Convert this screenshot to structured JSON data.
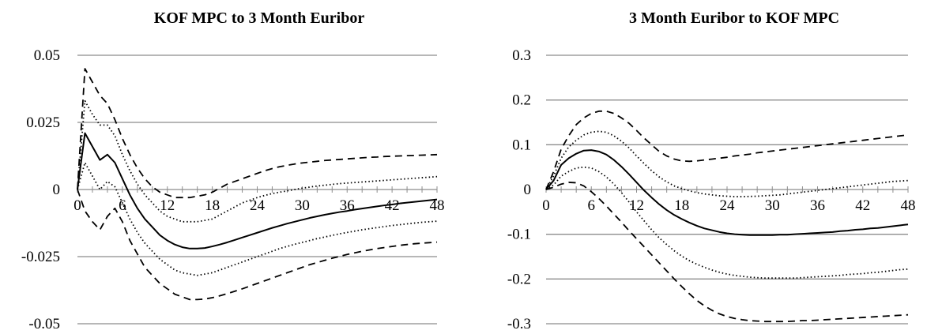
{
  "chart_data": [
    {
      "type": "line",
      "title": "KOF MPC to 3 Month Euribor",
      "xlabel": "",
      "ylabel": "",
      "xlim": [
        0,
        48
      ],
      "ylim": [
        -0.05,
        0.05
      ],
      "xticks": [
        0,
        6,
        12,
        18,
        24,
        30,
        36,
        42,
        48
      ],
      "xtick_labels": [
        "0",
        "6",
        "12",
        "18",
        "24",
        "30",
        "36",
        "42",
        "48"
      ],
      "yticks": [
        -0.05,
        -0.025,
        0,
        0.025,
        0.05
      ],
      "ytick_labels": [
        "-0.05",
        "-0.025",
        "0",
        "0.025",
        "0.05"
      ],
      "grid": true,
      "legend": "none",
      "x": [
        0,
        1,
        2,
        3,
        4,
        5,
        6,
        7,
        8,
        9,
        10,
        11,
        12,
        13,
        14,
        15,
        16,
        17,
        18,
        19,
        20,
        21,
        22,
        23,
        24,
        25,
        26,
        27,
        28,
        29,
        30,
        31,
        32,
        33,
        34,
        35,
        36,
        37,
        38,
        39,
        40,
        41,
        42,
        43,
        44,
        45,
        46,
        47,
        48
      ],
      "series": [
        {
          "style": "dashed",
          "values": [
            0,
            0.045,
            0.04,
            0.035,
            0.032,
            0.026,
            0.019,
            0.013,
            0.008,
            0.004,
            0.001,
            -0.001,
            -0.002,
            -0.003,
            -0.003,
            -0.003,
            -0.0025,
            -0.002,
            -0.001,
            0.0005,
            0.002,
            0.003,
            0.004,
            0.005,
            0.006,
            0.007,
            0.0078,
            0.0085,
            0.009,
            0.0095,
            0.0099,
            0.0102,
            0.0105,
            0.0108,
            0.011,
            0.0112,
            0.0114,
            0.0116,
            0.0118,
            0.012,
            0.0121,
            0.0123,
            0.0124,
            0.0125,
            0.0126,
            0.0127,
            0.0128,
            0.0129,
            0.013
          ]
        },
        {
          "style": "dotted",
          "values": [
            0,
            0.033,
            0.028,
            0.024,
            0.024,
            0.02,
            0.013,
            0.007,
            0.002,
            -0.002,
            -0.005,
            -0.008,
            -0.01,
            -0.011,
            -0.012,
            -0.012,
            -0.012,
            -0.0115,
            -0.011,
            -0.0095,
            -0.008,
            -0.0065,
            -0.005,
            -0.004,
            -0.003,
            -0.0022,
            -0.0015,
            -0.001,
            -0.0005,
            0,
            0.0005,
            0.0009,
            0.0013,
            0.0016,
            0.0019,
            0.0022,
            0.0024,
            0.0026,
            0.0028,
            0.003,
            0.0032,
            0.0034,
            0.0036,
            0.0038,
            0.004,
            0.0042,
            0.0044,
            0.0046,
            0.0048
          ]
        },
        {
          "style": "solid",
          "values": [
            0,
            0.021,
            0.016,
            0.011,
            0.013,
            0.01,
            0.004,
            -0.002,
            -0.007,
            -0.011,
            -0.014,
            -0.017,
            -0.019,
            -0.0205,
            -0.0215,
            -0.022,
            -0.022,
            -0.0218,
            -0.0212,
            -0.0205,
            -0.0197,
            -0.0188,
            -0.0179,
            -0.017,
            -0.0161,
            -0.0152,
            -0.0143,
            -0.0135,
            -0.0127,
            -0.012,
            -0.0113,
            -0.0106,
            -0.01,
            -0.0094,
            -0.0089,
            -0.0084,
            -0.008,
            -0.0075,
            -0.0071,
            -0.0067,
            -0.0063,
            -0.0059,
            -0.0056,
            -0.0052,
            -0.0049,
            -0.0046,
            -0.0043,
            -0.004,
            -0.0037
          ]
        },
        {
          "style": "dotted",
          "values": [
            0,
            0.01,
            0.005,
            0.0,
            0.003,
            0.001,
            -0.005,
            -0.011,
            -0.016,
            -0.02,
            -0.023,
            -0.026,
            -0.028,
            -0.03,
            -0.031,
            -0.0315,
            -0.032,
            -0.0315,
            -0.031,
            -0.03,
            -0.029,
            -0.028,
            -0.027,
            -0.026,
            -0.025,
            -0.024,
            -0.023,
            -0.022,
            -0.0212,
            -0.0204,
            -0.0197,
            -0.019,
            -0.0183,
            -0.0177,
            -0.0171,
            -0.0165,
            -0.016,
            -0.0155,
            -0.015,
            -0.0146,
            -0.0142,
            -0.0138,
            -0.0134,
            -0.0131,
            -0.0128,
            -0.0125,
            -0.0122,
            -0.012,
            -0.0118
          ]
        },
        {
          "style": "dashed",
          "values": [
            0,
            -0.008,
            -0.012,
            -0.015,
            -0.01,
            -0.007,
            -0.012,
            -0.019,
            -0.024,
            -0.029,
            -0.032,
            -0.035,
            -0.037,
            -0.039,
            -0.04,
            -0.041,
            -0.041,
            -0.0408,
            -0.0403,
            -0.0396,
            -0.0388,
            -0.0379,
            -0.037,
            -0.036,
            -0.035,
            -0.034,
            -0.033,
            -0.032,
            -0.031,
            -0.03,
            -0.029,
            -0.028,
            -0.0272,
            -0.0264,
            -0.0256,
            -0.0249,
            -0.0242,
            -0.0236,
            -0.023,
            -0.0225,
            -0.022,
            -0.0216,
            -0.0212,
            -0.0208,
            -0.0205,
            -0.0202,
            -0.02,
            -0.0198,
            -0.0196
          ]
        }
      ]
    },
    {
      "type": "line",
      "title": "3 Month Euribor to KOF MPC",
      "xlabel": "",
      "ylabel": "",
      "xlim": [
        0,
        48
      ],
      "ylim": [
        -0.3,
        0.3
      ],
      "xticks": [
        0,
        6,
        12,
        18,
        24,
        30,
        36,
        42,
        48
      ],
      "xtick_labels": [
        "0",
        "6",
        "12",
        "18",
        "24",
        "30",
        "36",
        "42",
        "48"
      ],
      "yticks": [
        -0.3,
        -0.2,
        -0.1,
        0,
        0.1,
        0.2,
        0.3
      ],
      "ytick_labels": [
        "-0.3",
        "-0.2",
        "-0.1",
        "0",
        "0.1",
        "0.2",
        "0.3"
      ],
      "grid": true,
      "legend": "none",
      "x": [
        0,
        1,
        2,
        3,
        4,
        5,
        6,
        7,
        8,
        9,
        10,
        11,
        12,
        13,
        14,
        15,
        16,
        17,
        18,
        19,
        20,
        21,
        22,
        23,
        24,
        25,
        26,
        27,
        28,
        29,
        30,
        31,
        32,
        33,
        34,
        35,
        36,
        37,
        38,
        39,
        40,
        41,
        42,
        43,
        44,
        45,
        46,
        47,
        48
      ],
      "series": [
        {
          "style": "dashed",
          "values": [
            0,
            0.04,
            0.09,
            0.12,
            0.145,
            0.16,
            0.17,
            0.175,
            0.175,
            0.17,
            0.16,
            0.148,
            0.132,
            0.115,
            0.1,
            0.085,
            0.075,
            0.068,
            0.064,
            0.063,
            0.064,
            0.066,
            0.068,
            0.07,
            0.072,
            0.075,
            0.077,
            0.079,
            0.082,
            0.084,
            0.086,
            0.088,
            0.09,
            0.092,
            0.094,
            0.096,
            0.098,
            0.1,
            0.102,
            0.104,
            0.106,
            0.108,
            0.11,
            0.112,
            0.114,
            0.116,
            0.118,
            0.12,
            0.122
          ]
        },
        {
          "style": "dotted",
          "values": [
            0,
            0.03,
            0.07,
            0.095,
            0.11,
            0.122,
            0.128,
            0.13,
            0.128,
            0.12,
            0.108,
            0.093,
            0.075,
            0.058,
            0.042,
            0.028,
            0.017,
            0.008,
            0.002,
            -0.003,
            -0.007,
            -0.01,
            -0.012,
            -0.014,
            -0.015,
            -0.016,
            -0.016,
            -0.0155,
            -0.015,
            -0.014,
            -0.013,
            -0.012,
            -0.01,
            -0.008,
            -0.006,
            -0.004,
            -0.002,
            0,
            0.002,
            0.004,
            0.006,
            0.008,
            0.01,
            0.012,
            0.014,
            0.016,
            0.018,
            0.019,
            0.02
          ]
        },
        {
          "style": "solid",
          "values": [
            0,
            0.02,
            0.055,
            0.07,
            0.08,
            0.087,
            0.088,
            0.085,
            0.078,
            0.066,
            0.051,
            0.034,
            0.016,
            -0.002,
            -0.018,
            -0.033,
            -0.046,
            -0.057,
            -0.066,
            -0.074,
            -0.081,
            -0.087,
            -0.091,
            -0.095,
            -0.098,
            -0.1,
            -0.101,
            -0.102,
            -0.102,
            -0.102,
            -0.102,
            -0.101,
            -0.101,
            -0.1,
            -0.099,
            -0.098,
            -0.097,
            -0.096,
            -0.095,
            -0.093,
            -0.092,
            -0.09,
            -0.089,
            -0.087,
            -0.086,
            -0.084,
            -0.082,
            -0.08,
            -0.078
          ]
        },
        {
          "style": "dotted",
          "values": [
            0,
            0.01,
            0.03,
            0.04,
            0.048,
            0.05,
            0.048,
            0.04,
            0.028,
            0.012,
            -0.007,
            -0.028,
            -0.05,
            -0.07,
            -0.09,
            -0.108,
            -0.123,
            -0.137,
            -0.149,
            -0.159,
            -0.167,
            -0.174,
            -0.18,
            -0.185,
            -0.189,
            -0.192,
            -0.194,
            -0.196,
            -0.197,
            -0.198,
            -0.198,
            -0.198,
            -0.198,
            -0.198,
            -0.197,
            -0.196,
            -0.195,
            -0.194,
            -0.193,
            -0.192,
            -0.19,
            -0.189,
            -0.188,
            -0.186,
            -0.185,
            -0.183,
            -0.181,
            -0.179,
            -0.178
          ]
        },
        {
          "style": "dashed",
          "values": [
            0,
            0.005,
            0.012,
            0.016,
            0.015,
            0.008,
            -0.005,
            -0.02,
            -0.037,
            -0.055,
            -0.073,
            -0.092,
            -0.11,
            -0.128,
            -0.146,
            -0.164,
            -0.182,
            -0.2,
            -0.217,
            -0.233,
            -0.248,
            -0.26,
            -0.27,
            -0.278,
            -0.284,
            -0.288,
            -0.291,
            -0.293,
            -0.294,
            -0.295,
            -0.295,
            -0.295,
            -0.295,
            -0.294,
            -0.293,
            -0.293,
            -0.292,
            -0.291,
            -0.29,
            -0.289,
            -0.288,
            -0.287,
            -0.286,
            -0.285,
            -0.284,
            -0.283,
            -0.282,
            -0.281,
            -0.28
          ]
        }
      ]
    }
  ]
}
